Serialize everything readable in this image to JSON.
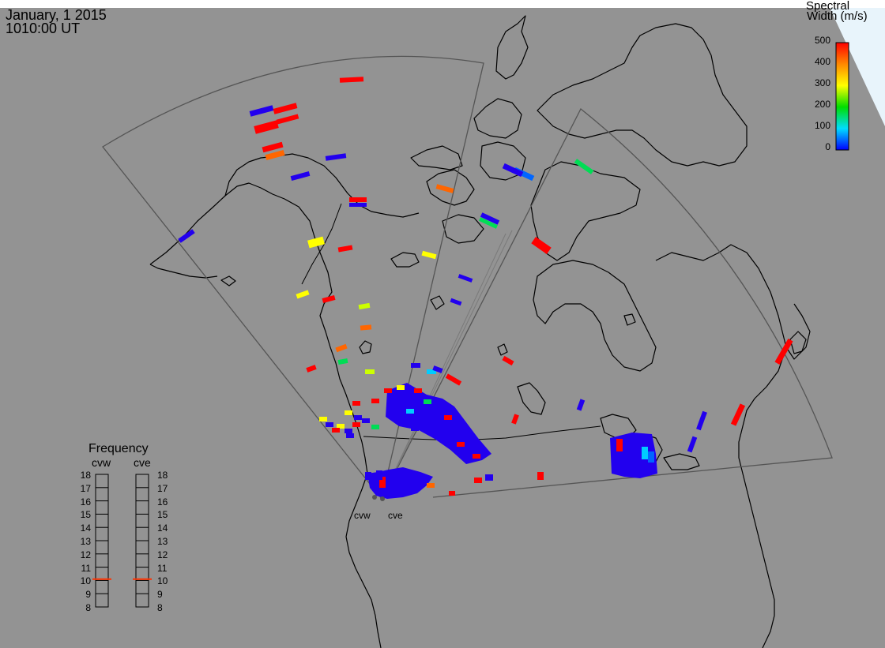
{
  "header": {
    "date": "January, 1 2015",
    "time": "1010:00 UT"
  },
  "colorbar": {
    "title_line1": "Spectral",
    "title_line2": "Width (m/s)",
    "ticks": [
      "500",
      "400",
      "300",
      "200",
      "100",
      "0"
    ],
    "stops": [
      "#ff0000",
      "#ff8800",
      "#ffff00",
      "#00dd00",
      "#00ddff",
      "#0000ff"
    ]
  },
  "frequency_panel": {
    "title": "Frequency",
    "radars": [
      {
        "name": "cvw",
        "value_mhz": 10.6
      },
      {
        "name": "cve",
        "value_mhz": 10.6
      }
    ],
    "scale": [
      "18",
      "17",
      "16",
      "15",
      "14",
      "13",
      "12",
      "11",
      "10",
      "9",
      "8"
    ],
    "indicator_color": "#ff3300"
  },
  "sites": [
    {
      "name": "cvw"
    },
    {
      "name": "cve"
    }
  ],
  "colors": {
    "background": "#939393",
    "outside": "#ffffff",
    "polar_corner": "#e8f4fb",
    "coastline": "#000000",
    "fov_outline": "#555555"
  }
}
